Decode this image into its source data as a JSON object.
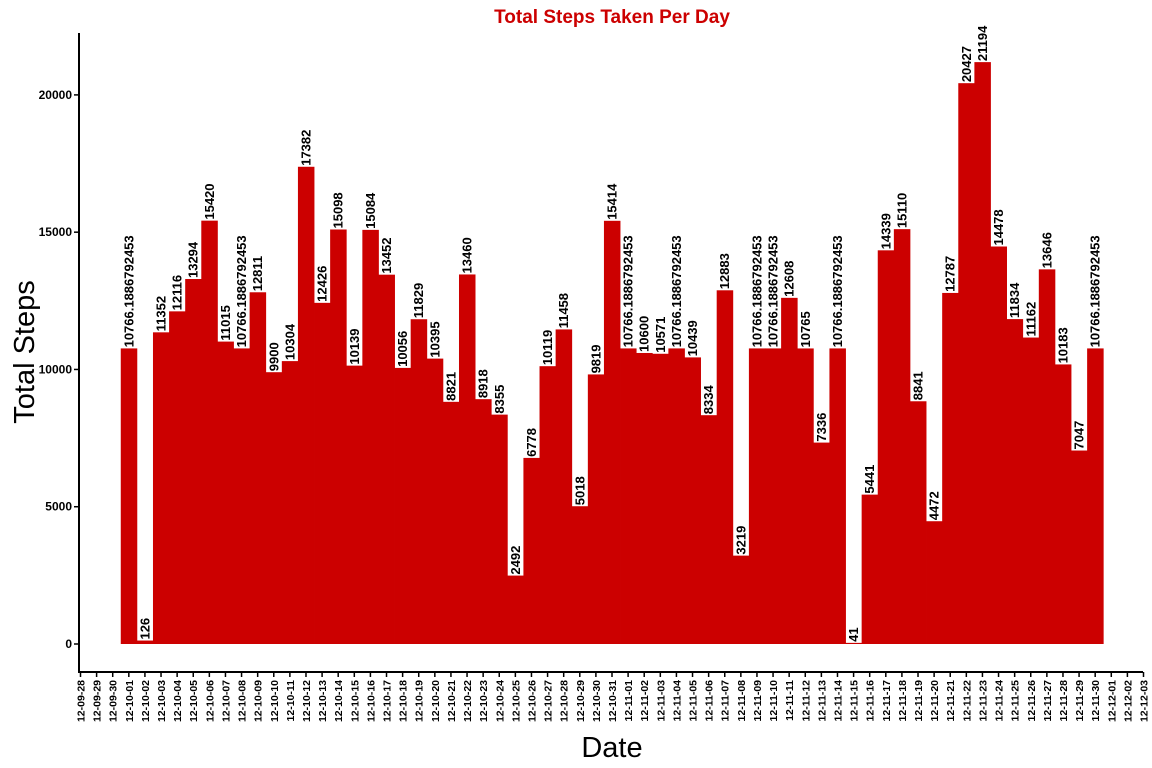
{
  "chart_data": {
    "type": "bar",
    "title": "Total Steps Taken Per Day",
    "xlabel": "Date",
    "ylabel": "Total Steps",
    "ylim": [
      0,
      22000
    ],
    "y_ticks": [
      0,
      5000,
      10000,
      15000,
      20000
    ],
    "x_tick_labels": [
      "12-09-28",
      "12-09-29",
      "12-09-30",
      "12-10-01",
      "12-10-02",
      "12-10-03",
      "12-10-04",
      "12-10-05",
      "12-10-06",
      "12-10-07",
      "12-10-08",
      "12-10-09",
      "12-10-10",
      "12-10-11",
      "12-10-12",
      "12-10-13",
      "12-10-14",
      "12-10-15",
      "12-10-16",
      "12-10-17",
      "12-10-18",
      "12-10-19",
      "12-10-20",
      "12-10-21",
      "12-10-22",
      "12-10-23",
      "12-10-24",
      "12-10-25",
      "12-10-26",
      "12-10-27",
      "12-10-28",
      "12-10-29",
      "12-10-30",
      "12-10-31",
      "12-11-01",
      "12-11-02",
      "12-11-03",
      "12-11-04",
      "12-11-05",
      "12-11-06",
      "12-11-07",
      "12-11-08",
      "12-11-09",
      "12-11-10",
      "12-11-11",
      "12-11-12",
      "12-11-13",
      "12-11-14",
      "12-11-15",
      "12-11-16",
      "12-11-17",
      "12-11-18",
      "12-11-19",
      "12-11-20",
      "12-11-21",
      "12-11-22",
      "12-11-23",
      "12-11-24",
      "12-11-25",
      "12-11-26",
      "12-11-27",
      "12-11-28",
      "12-11-29",
      "12-11-30",
      "12-12-01",
      "12-12-02",
      "12-12-03"
    ],
    "categories": [
      "12-10-01",
      "12-10-02",
      "12-10-03",
      "12-10-04",
      "12-10-05",
      "12-10-06",
      "12-10-07",
      "12-10-08",
      "12-10-09",
      "12-10-10",
      "12-10-11",
      "12-10-12",
      "12-10-13",
      "12-10-14",
      "12-10-15",
      "12-10-16",
      "12-10-17",
      "12-10-18",
      "12-10-19",
      "12-10-20",
      "12-10-21",
      "12-10-22",
      "12-10-23",
      "12-10-24",
      "12-10-25",
      "12-10-26",
      "12-10-27",
      "12-10-28",
      "12-10-29",
      "12-10-30",
      "12-10-31",
      "12-11-01",
      "12-11-02",
      "12-11-03",
      "12-11-04",
      "12-11-05",
      "12-11-06",
      "12-11-07",
      "12-11-08",
      "12-11-09",
      "12-11-10",
      "12-11-11",
      "12-11-12",
      "12-11-13",
      "12-11-14",
      "12-11-15",
      "12-11-16",
      "12-11-17",
      "12-11-18",
      "12-11-19",
      "12-11-20",
      "12-11-21",
      "12-11-22",
      "12-11-23",
      "12-11-24",
      "12-11-25",
      "12-11-26",
      "12-11-27",
      "12-11-28",
      "12-11-29",
      "12-11-30"
    ],
    "values": [
      10766.1886792453,
      126,
      11352,
      12116,
      13294,
      15420,
      11015,
      10766.1886792453,
      12811,
      9900,
      10304,
      17382,
      12426,
      15098,
      10139,
      15084,
      13452,
      10056,
      11829,
      10395,
      8821,
      13460,
      8918,
      8355,
      2492,
      6778,
      10119,
      11458,
      5018,
      9819,
      15414,
      10766.1886792453,
      10600,
      10571,
      10766.1886792453,
      10439,
      8334,
      12883,
      3219,
      10766.1886792453,
      10766.1886792453,
      12608,
      10765,
      7336,
      10766.1886792453,
      41,
      5441,
      14339,
      15110,
      8841,
      4472,
      12787,
      20427,
      21194,
      14478,
      11834,
      11162,
      13646,
      10183,
      7047,
      10766.1886792453
    ],
    "data_labels": [
      "10766.1886792453",
      "126",
      "11352",
      "12116",
      "13294",
      "15420",
      "11015",
      "10766.1886792453",
      "12811",
      "9900",
      "10304",
      "17382",
      "12426",
      "15098",
      "10139",
      "15084",
      "13452",
      "10056",
      "11829",
      "10395",
      "8821",
      "13460",
      "8918",
      "8355",
      "2492",
      "6778",
      "10119",
      "11458",
      "5018",
      "9819",
      "15414",
      "10766.1886792453",
      "10600",
      "10571",
      "10766.1886792453",
      "10439",
      "8334",
      "12883",
      "3219",
      "10766.1886792453",
      "10766.1886792453",
      "12608",
      "10765",
      "7336",
      "10766.1886792453",
      "41",
      "5441",
      "14339",
      "15110",
      "8841",
      "4472",
      "12787",
      "20427",
      "21194",
      "14478",
      "11834",
      "11162",
      "13646",
      "10183",
      "7047",
      "10766.1886792453"
    ],
    "bar_color": "#CC0000",
    "title_color": "#CC0000",
    "grid": false,
    "legend": "none"
  }
}
